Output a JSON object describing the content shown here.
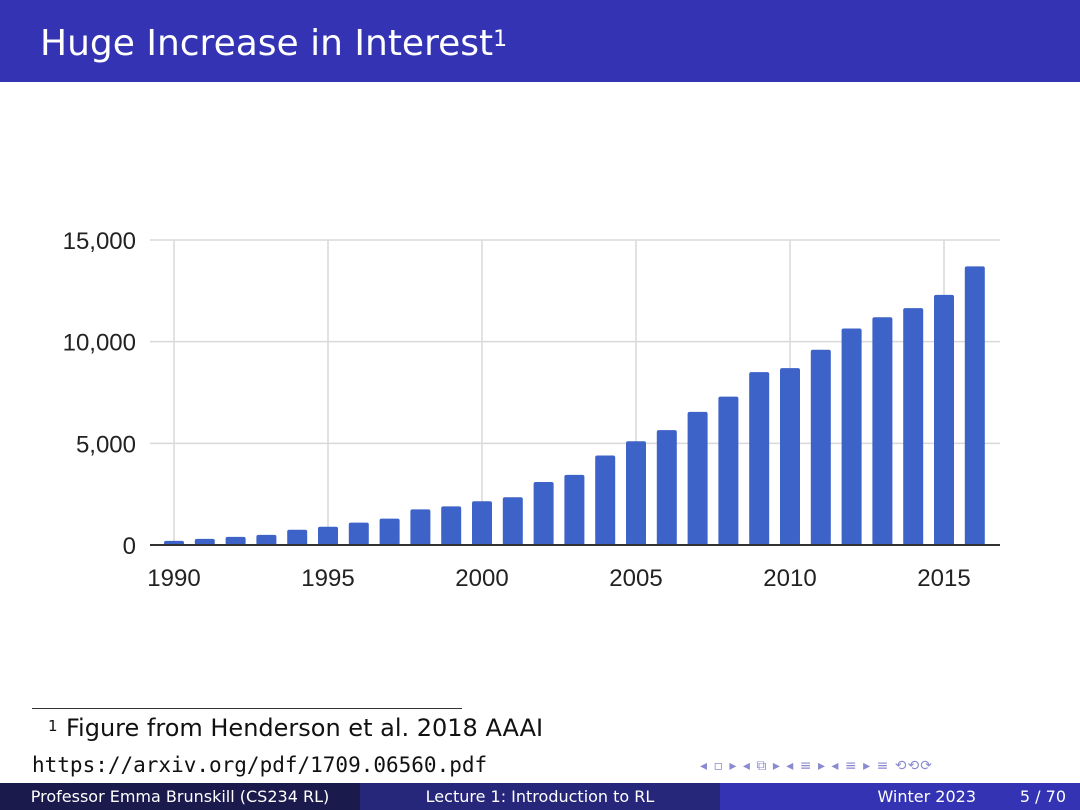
{
  "slide": {
    "title": "Huge Increase in Interest",
    "title_footnote_mark": "1",
    "footnote_mark": "1",
    "footnote_text": "Figure from Henderson et al. 2018 AAAI",
    "footnote_url": "https://arxiv.org/pdf/1709.06560.pdf",
    "nav_symbols": "◂ ▫ ▸ ◂ ⧉ ▸ ◂ ≡ ▸ ◂ ≡ ▸ ≡ ⟲⟲⟳"
  },
  "footer": {
    "author": "Professor Emma Brunskill (CS234 RL)",
    "lecture": "Lecture 1: Introduction to RL",
    "date": "Winter 2023",
    "page": "5 / 70"
  },
  "colors": {
    "title_bar": "#3333b3",
    "bar": "#3d62c8",
    "grid": "#d9d9d9"
  },
  "chart_data": {
    "type": "bar",
    "title": "",
    "xlabel": "",
    "ylabel": "",
    "x": [
      1990,
      1991,
      1992,
      1993,
      1994,
      1995,
      1996,
      1997,
      1998,
      1999,
      2000,
      2001,
      2002,
      2003,
      2004,
      2005,
      2006,
      2007,
      2008,
      2009,
      2010,
      2011,
      2012,
      2013,
      2014,
      2015,
      2016
    ],
    "values": [
      200,
      300,
      400,
      500,
      750,
      900,
      1100,
      1300,
      1750,
      1900,
      2150,
      2350,
      3100,
      3450,
      4400,
      5100,
      5650,
      6550,
      7300,
      8500,
      8700,
      9600,
      10650,
      11200,
      11650,
      12300,
      13700
    ],
    "ylim": [
      0,
      15000
    ],
    "yticks": [
      0,
      5000,
      10000,
      15000
    ],
    "ytick_labels": [
      "0",
      "5,000",
      "10,000",
      "15,000"
    ],
    "xticks": [
      1990,
      1995,
      2000,
      2005,
      2010,
      2015
    ],
    "xtick_labels": [
      "1990",
      "1995",
      "2000",
      "2005",
      "2010",
      "2015"
    ],
    "grid": true,
    "legend": "none"
  }
}
